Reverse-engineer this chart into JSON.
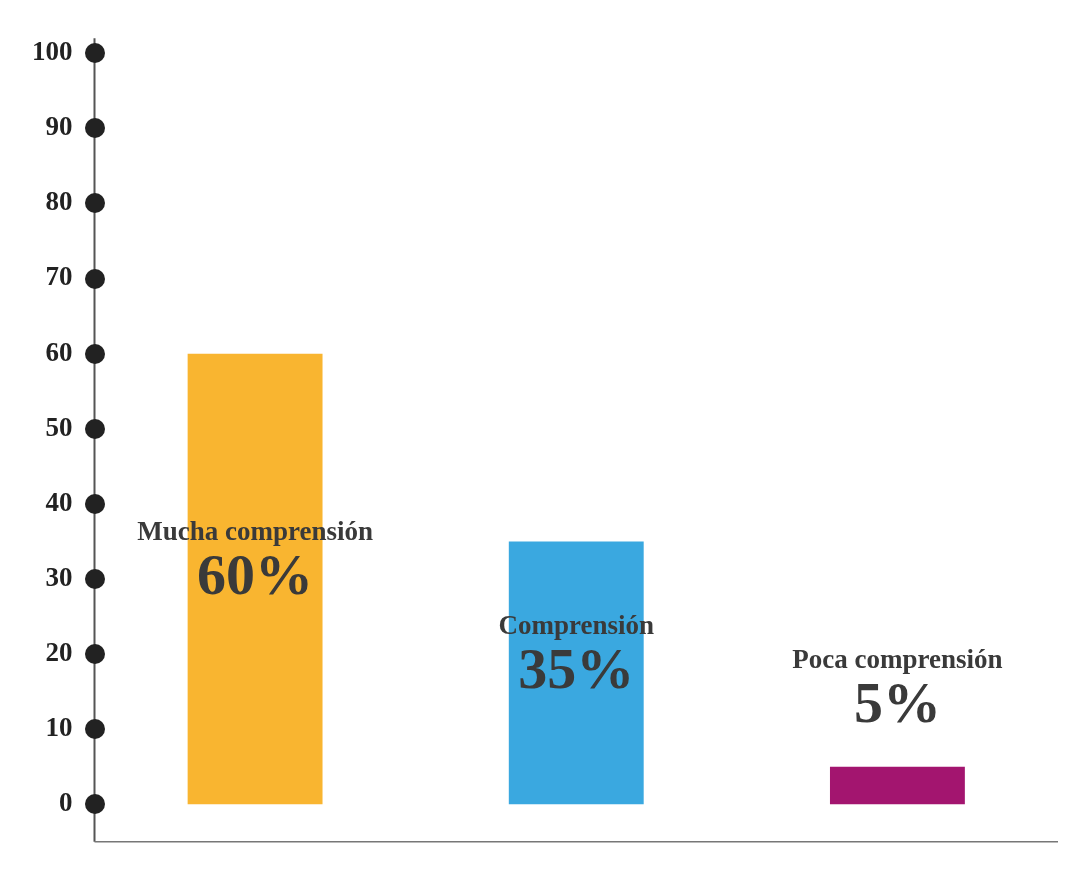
{
  "chart_data": {
    "type": "bar",
    "categories": [
      "Mucha comprensión",
      "Comprensión",
      "Poca comprensión"
    ],
    "values": [
      60,
      35,
      5
    ],
    "colors": [
      "#f9b530",
      "#3aa8e0",
      "#a3156f"
    ],
    "value_labels": [
      "60%",
      "35%",
      "5%"
    ],
    "ylim": [
      -5,
      102
    ],
    "yticks": [
      0,
      10,
      20,
      30,
      40,
      50,
      60,
      70,
      80,
      90,
      100
    ],
    "grid": false,
    "tick_labels": "y"
  }
}
